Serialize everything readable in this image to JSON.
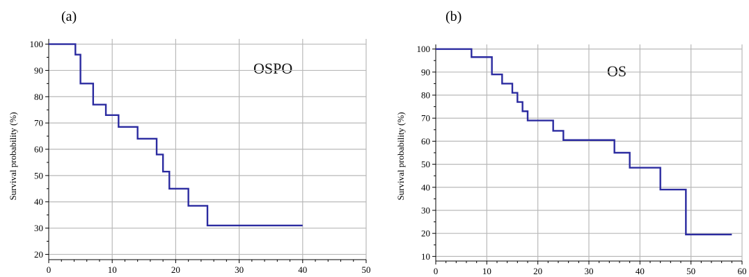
{
  "chart_data": [
    {
      "type": "line",
      "panel_label": "(a)",
      "annotation": "OSPO",
      "xlabel": "",
      "ylabel": "Survival probability (%)",
      "xlim": [
        0,
        50
      ],
      "ylim": [
        18,
        102
      ],
      "xticks": [
        0,
        10,
        20,
        30,
        40,
        50
      ],
      "yticks": [
        20,
        30,
        40,
        50,
        60,
        70,
        80,
        90,
        100
      ],
      "grid": true,
      "step": true,
      "color": "#2b2ba0",
      "series": [
        {
          "x": [
            0,
            4.2,
            5,
            7,
            9,
            11,
            14,
            17,
            18,
            19,
            22,
            25,
            40
          ],
          "y": [
            100,
            96,
            85,
            77,
            73,
            68.5,
            64,
            58,
            51.5,
            45,
            38.5,
            31,
            31
          ]
        }
      ]
    },
    {
      "type": "line",
      "panel_label": "(b)",
      "annotation": "OS",
      "xlabel": "",
      "ylabel": "Survival probability (%)",
      "xlim": [
        0,
        60
      ],
      "ylim": [
        8,
        102
      ],
      "xticks": [
        0,
        10,
        20,
        30,
        40,
        50,
        60
      ],
      "yticks": [
        10,
        20,
        30,
        40,
        50,
        60,
        70,
        80,
        90,
        100
      ],
      "grid": true,
      "step": true,
      "color": "#2b2ba0",
      "series": [
        {
          "x": [
            0,
            7,
            11,
            13,
            15,
            16,
            17,
            18,
            23,
            25,
            35,
            38,
            44,
            49,
            58
          ],
          "y": [
            100,
            96.5,
            89,
            85,
            81,
            77,
            73,
            69,
            64.5,
            60.5,
            55,
            48.5,
            39,
            19.5,
            19.5
          ]
        }
      ]
    }
  ]
}
